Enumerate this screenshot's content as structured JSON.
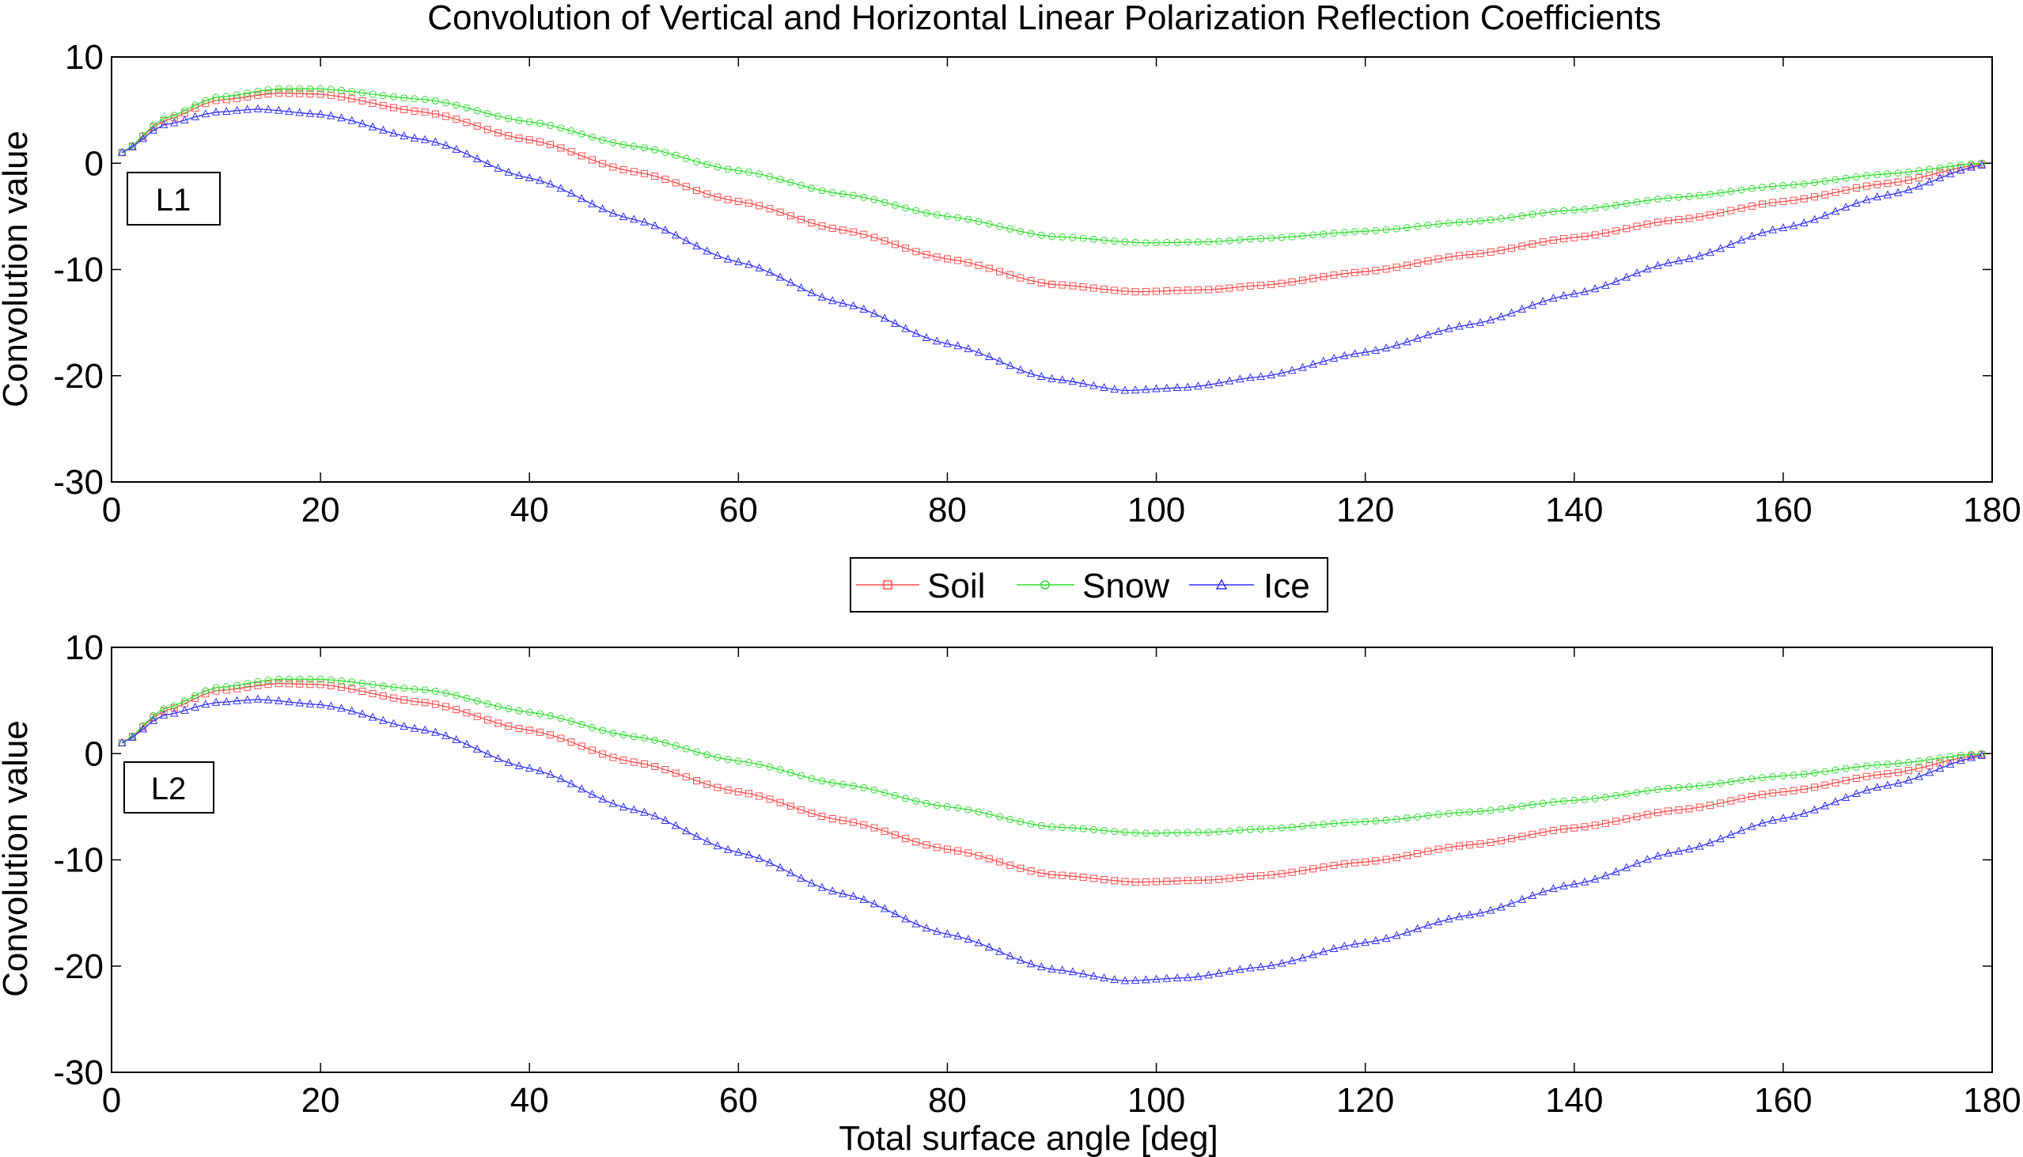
{
  "title": "Convolution of Vertical and Horizontal Linear Polarization Reflection Coefficients",
  "legend": [
    {
      "name": "Soil",
      "color": "#ff4d4d",
      "marker": "square"
    },
    {
      "name": "Snow",
      "color": "#33dd33",
      "marker": "circle"
    },
    {
      "name": "Ice",
      "color": "#3333ff",
      "marker": "triangle"
    }
  ],
  "chart_data": [
    {
      "type": "line",
      "panel_label": "L1",
      "title": "Convolution of Vertical and Horizontal Linear Polarization Reflection Coefficients",
      "xlabel": "",
      "ylabel": "Convolution value",
      "xlim": [
        0,
        180
      ],
      "ylim": [
        -30,
        10
      ],
      "xticks": [
        0,
        20,
        40,
        60,
        80,
        100,
        120,
        140,
        160,
        180
      ],
      "yticks": [
        -30,
        -20,
        -10,
        0,
        10
      ],
      "grid": false,
      "x_sample_step": 1,
      "x_sample_range": [
        1,
        179
      ],
      "series": [
        {
          "name": "Soil",
          "color": "#ff4d4d",
          "marker": "square",
          "points": [
            [
              1,
              1
            ],
            [
              5,
              4
            ],
            [
              10,
              5.9
            ],
            [
              16,
              6.6
            ],
            [
              20,
              6.5
            ],
            [
              30,
              4.8
            ],
            [
              40,
              2.2
            ],
            [
              50,
              -0.8
            ],
            [
              60,
              -3.6
            ],
            [
              70,
              -6.3
            ],
            [
              80,
              -9
            ],
            [
              90,
              -11.4
            ],
            [
              98,
              -12.1
            ],
            [
              105,
              -11.9
            ],
            [
              110,
              -11.5
            ],
            [
              120,
              -10.2
            ],
            [
              130,
              -8.6
            ],
            [
              140,
              -7
            ],
            [
              150,
              -5.3
            ],
            [
              160,
              -3.6
            ],
            [
              170,
              -1.9
            ],
            [
              179,
              -0.1
            ]
          ]
        },
        {
          "name": "Snow",
          "color": "#33dd33",
          "marker": "circle",
          "points": [
            [
              1,
              1
            ],
            [
              5,
              4.2
            ],
            [
              10,
              6.2
            ],
            [
              16,
              7
            ],
            [
              20,
              7
            ],
            [
              30,
              6
            ],
            [
              40,
              3.9
            ],
            [
              50,
              1.6
            ],
            [
              60,
              -0.7
            ],
            [
              70,
              -2.9
            ],
            [
              80,
              -5
            ],
            [
              90,
              -6.9
            ],
            [
              99,
              -7.5
            ],
            [
              105,
              -7.4
            ],
            [
              110,
              -7.1
            ],
            [
              120,
              -6.4
            ],
            [
              130,
              -5.5
            ],
            [
              140,
              -4.4
            ],
            [
              150,
              -3.2
            ],
            [
              160,
              -2.1
            ],
            [
              170,
              -1
            ],
            [
              179,
              0
            ]
          ]
        },
        {
          "name": "Ice",
          "color": "#3333ff",
          "marker": "triangle",
          "points": [
            [
              1,
              1
            ],
            [
              5,
              3.6
            ],
            [
              10,
              4.8
            ],
            [
              14,
              5.1
            ],
            [
              20,
              4.6
            ],
            [
              30,
              2.2
            ],
            [
              40,
              -1.4
            ],
            [
              50,
              -5.3
            ],
            [
              60,
              -9.3
            ],
            [
              70,
              -13.2
            ],
            [
              80,
              -17
            ],
            [
              90,
              -20.3
            ],
            [
              97,
              -21.4
            ],
            [
              103,
              -21.1
            ],
            [
              110,
              -20.1
            ],
            [
              120,
              -17.8
            ],
            [
              130,
              -15.2
            ],
            [
              140,
              -12.3
            ],
            [
              150,
              -9.2
            ],
            [
              160,
              -6.1
            ],
            [
              170,
              -3
            ],
            [
              179,
              -0.2
            ]
          ]
        }
      ]
    },
    {
      "type": "line",
      "panel_label": "L2",
      "xlabel": "Total surface angle [deg]",
      "ylabel": "Convolution value",
      "xlim": [
        0,
        180
      ],
      "ylim": [
        -30,
        10
      ],
      "xticks": [
        0,
        20,
        40,
        60,
        80,
        100,
        120,
        140,
        160,
        180
      ],
      "yticks": [
        -30,
        -20,
        -10,
        0,
        10
      ],
      "grid": false,
      "x_sample_step": 1,
      "x_sample_range": [
        1,
        179
      ],
      "series": [
        {
          "name": "Soil",
          "color": "#ff4d4d",
          "marker": "square",
          "points": [
            [
              1,
              1
            ],
            [
              5,
              4
            ],
            [
              10,
              5.9
            ],
            [
              16,
              6.6
            ],
            [
              20,
              6.5
            ],
            [
              30,
              4.8
            ],
            [
              40,
              2.2
            ],
            [
              50,
              -0.8
            ],
            [
              60,
              -3.6
            ],
            [
              70,
              -6.3
            ],
            [
              80,
              -9
            ],
            [
              90,
              -11.4
            ],
            [
              98,
              -12.1
            ],
            [
              105,
              -11.9
            ],
            [
              110,
              -11.5
            ],
            [
              120,
              -10.2
            ],
            [
              130,
              -8.6
            ],
            [
              140,
              -7
            ],
            [
              150,
              -5.3
            ],
            [
              160,
              -3.6
            ],
            [
              170,
              -1.9
            ],
            [
              179,
              -0.1
            ]
          ]
        },
        {
          "name": "Snow",
          "color": "#33dd33",
          "marker": "circle",
          "points": [
            [
              1,
              1
            ],
            [
              5,
              4.2
            ],
            [
              10,
              6.2
            ],
            [
              16,
              7
            ],
            [
              20,
              7
            ],
            [
              30,
              6
            ],
            [
              40,
              3.9
            ],
            [
              50,
              1.6
            ],
            [
              60,
              -0.7
            ],
            [
              70,
              -2.9
            ],
            [
              80,
              -5
            ],
            [
              90,
              -6.9
            ],
            [
              99,
              -7.5
            ],
            [
              105,
              -7.4
            ],
            [
              110,
              -7.1
            ],
            [
              120,
              -6.4
            ],
            [
              130,
              -5.5
            ],
            [
              140,
              -4.4
            ],
            [
              150,
              -3.2
            ],
            [
              160,
              -2.1
            ],
            [
              170,
              -1
            ],
            [
              179,
              0
            ]
          ]
        },
        {
          "name": "Ice",
          "color": "#3333ff",
          "marker": "triangle",
          "points": [
            [
              1,
              1
            ],
            [
              5,
              3.6
            ],
            [
              10,
              4.8
            ],
            [
              14,
              5.1
            ],
            [
              20,
              4.6
            ],
            [
              30,
              2.2
            ],
            [
              40,
              -1.4
            ],
            [
              50,
              -5.3
            ],
            [
              60,
              -9.3
            ],
            [
              70,
              -13.2
            ],
            [
              80,
              -17
            ],
            [
              90,
              -20.3
            ],
            [
              97,
              -21.4
            ],
            [
              103,
              -21.1
            ],
            [
              110,
              -20.1
            ],
            [
              120,
              -17.8
            ],
            [
              130,
              -15.2
            ],
            [
              140,
              -12.3
            ],
            [
              150,
              -9.2
            ],
            [
              160,
              -6.1
            ],
            [
              170,
              -3
            ],
            [
              179,
              -0.2
            ]
          ]
        }
      ]
    }
  ]
}
